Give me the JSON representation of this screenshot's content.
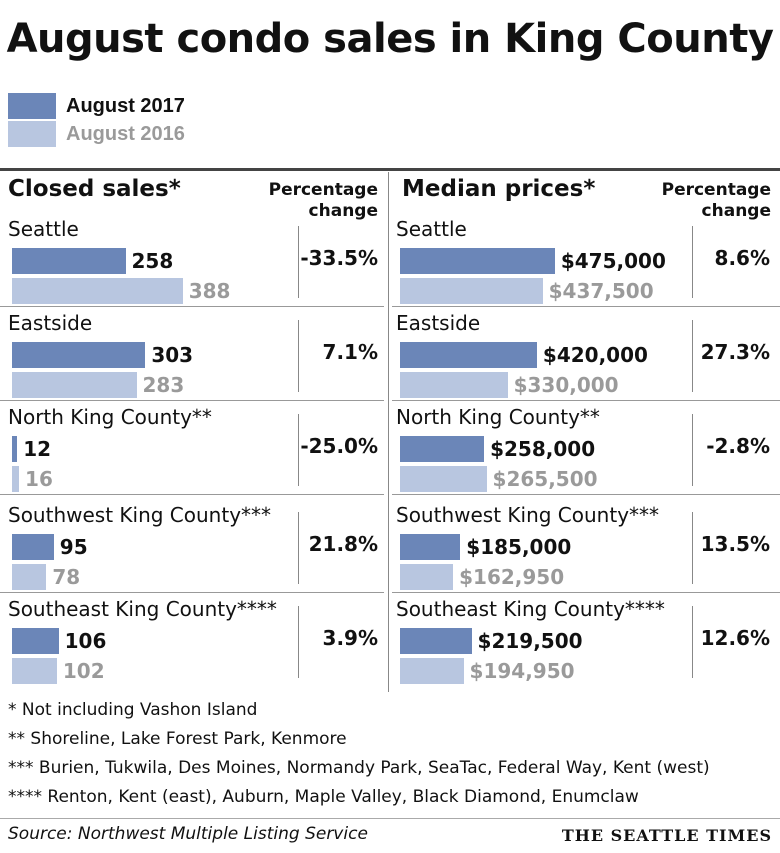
{
  "title": "August condo sales in King County",
  "legend": [
    {
      "label": "August 2017",
      "color": "#6b86b8"
    },
    {
      "label": "August 2016",
      "color": "#b8c6e0"
    }
  ],
  "pct_header": "Percentage change",
  "chart_data": [
    {
      "type": "bar",
      "title": "Closed sales*",
      "categories": [
        "Seattle",
        "Eastside",
        "North King County**",
        "Southwest King County***",
        "Southeast King County****"
      ],
      "series": [
        {
          "name": "August 2017",
          "values": [
            258,
            303,
            12,
            95,
            106
          ],
          "labels": [
            "258",
            "303",
            "12",
            "95",
            "106"
          ]
        },
        {
          "name": "August 2016",
          "values": [
            388,
            283,
            16,
            78,
            102
          ],
          "labels": [
            "388",
            "283",
            "16",
            "78",
            "102"
          ]
        }
      ],
      "percent_change": [
        "-33.5%",
        "7.1%",
        "-25.0%",
        "21.8%",
        "3.9%"
      ]
    },
    {
      "type": "bar",
      "title": "Median prices*",
      "categories": [
        "Seattle",
        "Eastside",
        "North King County**",
        "Southwest King County***",
        "Southeast King County****"
      ],
      "series": [
        {
          "name": "August 2017",
          "values": [
            475000,
            420000,
            258000,
            185000,
            219500
          ],
          "labels": [
            "$475,000",
            "$420,000",
            "$258,000",
            "$185,000",
            "$219,500"
          ]
        },
        {
          "name": "August 2016",
          "values": [
            437500,
            330000,
            265500,
            162950,
            194950
          ],
          "labels": [
            "$437,500",
            "$330,000",
            "$265,500",
            "$162,950",
            "$194,950"
          ]
        }
      ],
      "percent_change": [
        "8.6%",
        "27.3%",
        "-2.8%",
        "13.5%",
        "12.6%"
      ]
    }
  ],
  "notes": [
    "* Not including Vashon Island",
    "** Shoreline, Lake Forest Park, Kenmore",
    "*** Burien, Tukwila, Des Moines, Normandy Park, SeaTac, Federal Way, Kent (west)",
    "**** Renton, Kent (east), Auburn, Maple Valley, Black Diamond, Enumclaw"
  ],
  "source": "Source: Northwest Multiple Listing Service",
  "brand": "THE SEATTLE TIMES"
}
